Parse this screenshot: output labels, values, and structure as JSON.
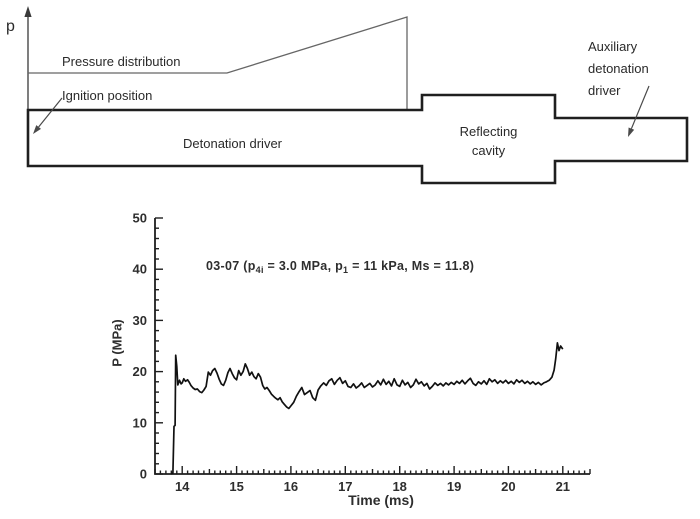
{
  "diagram": {
    "p_axis_label": "p",
    "pressure_distribution_label": "Pressure distribution",
    "ignition_position_label": "Ignition position",
    "detonation_driver_label": "Detonation driver",
    "reflecting_cavity_lines": [
      "Reflecting",
      "cavity"
    ],
    "auxiliary_driver_lines": [
      "Auxiliary",
      "detonation",
      "driver"
    ]
  },
  "colors": {
    "ink": "#1f1f1f",
    "thin_line": "#666666",
    "curve": "#111111"
  },
  "chart_data": {
    "type": "line",
    "title": "03-07 (p4i = 3.0 MPa, p1 = 11 kPa, Ms = 11.8)",
    "title_parts": [
      {
        "t": "03-07 (p"
      },
      {
        "t": "4i",
        "sub": true
      },
      {
        "t": " = 3.0 MPa, p"
      },
      {
        "t": "1",
        "sub": true
      },
      {
        "t": " = 11 kPa, Ms = 11.8)"
      }
    ],
    "xlabel": "Time (ms)",
    "ylabel": "P (MPa)",
    "xlim": [
      13.5,
      21.5
    ],
    "ylim": [
      0,
      50
    ],
    "x_ticks": [
      14,
      15,
      16,
      17,
      18,
      19,
      20,
      21
    ],
    "y_ticks": [
      0,
      10,
      20,
      30,
      40,
      50
    ],
    "x_minor_step": 0.1,
    "y_minor_step": 2,
    "grid": false,
    "legend": false,
    "series": [
      {
        "name": "pressure-trace",
        "color": "#111111",
        "points": [
          [
            13.8,
            0
          ],
          [
            13.83,
            0.2
          ],
          [
            13.85,
            9.3
          ],
          [
            13.87,
            9.5
          ],
          [
            13.88,
            23.2
          ],
          [
            13.9,
            21.0
          ],
          [
            13.92,
            17.4
          ],
          [
            13.95,
            18.3
          ],
          [
            13.98,
            17.6
          ],
          [
            14.0,
            17.8
          ],
          [
            14.03,
            18.6
          ],
          [
            14.06,
            18.1
          ],
          [
            14.1,
            18.4
          ],
          [
            14.13,
            17.9
          ],
          [
            14.16,
            17.3
          ],
          [
            14.2,
            16.8
          ],
          [
            14.24,
            16.5
          ],
          [
            14.28,
            16.6
          ],
          [
            14.32,
            16.1
          ],
          [
            14.36,
            15.9
          ],
          [
            14.4,
            16.4
          ],
          [
            14.44,
            17.1
          ],
          [
            14.48,
            19.9
          ],
          [
            14.52,
            19.3
          ],
          [
            14.56,
            20.2
          ],
          [
            14.6,
            20.6
          ],
          [
            14.64,
            19.7
          ],
          [
            14.68,
            18.5
          ],
          [
            14.72,
            17.6
          ],
          [
            14.76,
            17.3
          ],
          [
            14.8,
            18.3
          ],
          [
            14.84,
            19.8
          ],
          [
            14.88,
            20.6
          ],
          [
            14.92,
            19.6
          ],
          [
            14.96,
            18.8
          ],
          [
            15.0,
            18.4
          ],
          [
            15.04,
            20.2
          ],
          [
            15.08,
            19.3
          ],
          [
            15.12,
            20.0
          ],
          [
            15.16,
            21.5
          ],
          [
            15.2,
            20.6
          ],
          [
            15.24,
            19.3
          ],
          [
            15.28,
            19.9
          ],
          [
            15.32,
            19.0
          ],
          [
            15.36,
            18.6
          ],
          [
            15.4,
            19.6
          ],
          [
            15.44,
            18.9
          ],
          [
            15.48,
            17.3
          ],
          [
            15.52,
            16.6
          ],
          [
            15.56,
            16.9
          ],
          [
            15.6,
            16.3
          ],
          [
            15.64,
            15.6
          ],
          [
            15.68,
            15.2
          ],
          [
            15.72,
            14.8
          ],
          [
            15.76,
            14.5
          ],
          [
            15.8,
            14.9
          ],
          [
            15.84,
            14.1
          ],
          [
            15.88,
            13.6
          ],
          [
            15.92,
            13.1
          ],
          [
            15.96,
            12.8
          ],
          [
            16.0,
            13.3
          ],
          [
            16.05,
            14.0
          ],
          [
            16.1,
            15.2
          ],
          [
            16.15,
            16.1
          ],
          [
            16.2,
            16.9
          ],
          [
            16.25,
            15.5
          ],
          [
            16.3,
            15.9
          ],
          [
            16.35,
            16.3
          ],
          [
            16.4,
            14.9
          ],
          [
            16.45,
            14.4
          ],
          [
            16.5,
            16.4
          ],
          [
            16.55,
            17.2
          ],
          [
            16.6,
            17.8
          ],
          [
            16.65,
            17.3
          ],
          [
            16.7,
            18.2
          ],
          [
            16.75,
            18.6
          ],
          [
            16.8,
            17.5
          ],
          [
            16.85,
            18.3
          ],
          [
            16.9,
            18.8
          ],
          [
            16.95,
            17.7
          ],
          [
            17.0,
            18.2
          ],
          [
            17.05,
            17.1
          ],
          [
            17.1,
            16.9
          ],
          [
            17.15,
            17.6
          ],
          [
            17.2,
            16.8
          ],
          [
            17.25,
            17.2
          ],
          [
            17.3,
            17.8
          ],
          [
            17.35,
            16.9
          ],
          [
            17.4,
            17.3
          ],
          [
            17.45,
            17.7
          ],
          [
            17.5,
            17.0
          ],
          [
            17.55,
            17.4
          ],
          [
            17.6,
            18.2
          ],
          [
            17.65,
            17.4
          ],
          [
            17.7,
            18.5
          ],
          [
            17.75,
            17.5
          ],
          [
            17.8,
            18.1
          ],
          [
            17.85,
            17.2
          ],
          [
            17.9,
            18.6
          ],
          [
            17.95,
            17.4
          ],
          [
            18.0,
            17.1
          ],
          [
            18.05,
            18.3
          ],
          [
            18.1,
            17.4
          ],
          [
            18.15,
            17.9
          ],
          [
            18.2,
            16.9
          ],
          [
            18.25,
            17.4
          ],
          [
            18.3,
            18.5
          ],
          [
            18.35,
            17.6
          ],
          [
            18.4,
            18.0
          ],
          [
            18.45,
            17.2
          ],
          [
            18.5,
            17.7
          ],
          [
            18.55,
            16.6
          ],
          [
            18.6,
            17.1
          ],
          [
            18.65,
            17.8
          ],
          [
            18.7,
            17.3
          ],
          [
            18.75,
            17.7
          ],
          [
            18.8,
            17.2
          ],
          [
            18.85,
            17.8
          ],
          [
            18.9,
            17.4
          ],
          [
            18.95,
            17.9
          ],
          [
            19.0,
            17.5
          ],
          [
            19.05,
            18.1
          ],
          [
            19.1,
            17.7
          ],
          [
            19.15,
            18.3
          ],
          [
            19.2,
            17.6
          ],
          [
            19.25,
            18.2
          ],
          [
            19.3,
            18.7
          ],
          [
            19.35,
            17.7
          ],
          [
            19.4,
            17.3
          ],
          [
            19.45,
            18.0
          ],
          [
            19.5,
            17.6
          ],
          [
            19.55,
            18.2
          ],
          [
            19.6,
            17.5
          ],
          [
            19.65,
            18.6
          ],
          [
            19.7,
            18.0
          ],
          [
            19.75,
            18.4
          ],
          [
            19.8,
            17.7
          ],
          [
            19.85,
            18.2
          ],
          [
            19.9,
            17.8
          ],
          [
            19.95,
            18.3
          ],
          [
            20.0,
            17.7
          ],
          [
            20.05,
            18.1
          ],
          [
            20.1,
            17.6
          ],
          [
            20.15,
            18.4
          ],
          [
            20.2,
            17.9
          ],
          [
            20.25,
            18.3
          ],
          [
            20.3,
            17.7
          ],
          [
            20.35,
            18.1
          ],
          [
            20.4,
            17.6
          ],
          [
            20.45,
            18.0
          ],
          [
            20.5,
            17.5
          ],
          [
            20.55,
            17.9
          ],
          [
            20.6,
            17.4
          ],
          [
            20.65,
            17.8
          ],
          [
            20.7,
            18.0
          ],
          [
            20.75,
            18.3
          ],
          [
            20.8,
            18.9
          ],
          [
            20.84,
            20.3
          ],
          [
            20.87,
            22.5
          ],
          [
            20.9,
            25.6
          ],
          [
            20.93,
            24.1
          ],
          [
            20.96,
            25.0
          ],
          [
            21.0,
            24.4
          ]
        ]
      }
    ]
  }
}
